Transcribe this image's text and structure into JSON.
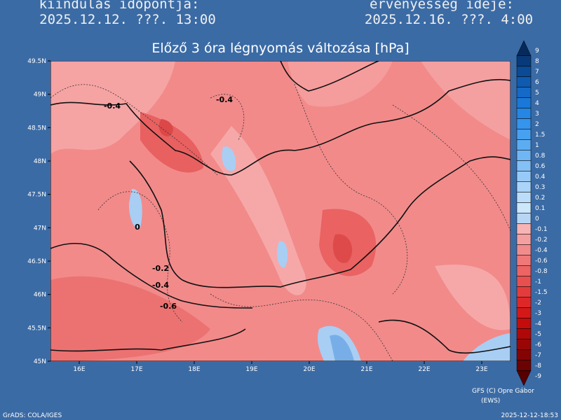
{
  "header": {
    "left_label": "kiindulás időpontja:",
    "left_value": "2025.12.12. ???. 13:00",
    "right_label": "érvényesség ideje:",
    "right_value": "2025.12.16. ???. 4:00"
  },
  "title": "Előző 3 óra légnyomás változása [hPa]",
  "map": {
    "latlim": [
      45,
      49.5
    ],
    "lonlim": [
      15.5,
      23.5
    ],
    "lat_ticks": [
      {
        "value": 49.5,
        "label": "49.5N"
      },
      {
        "value": 49,
        "label": "49N"
      },
      {
        "value": 48.5,
        "label": "48.5N"
      },
      {
        "value": 48,
        "label": "48N"
      },
      {
        "value": 47.5,
        "label": "47.5N"
      },
      {
        "value": 47,
        "label": "47N"
      },
      {
        "value": 46.5,
        "label": "46.5N"
      },
      {
        "value": 46,
        "label": "46N"
      },
      {
        "value": 45.5,
        "label": "45.5N"
      },
      {
        "value": 45,
        "label": "45N"
      }
    ],
    "lon_ticks": [
      {
        "value": 16,
        "label": "16E"
      },
      {
        "value": 17,
        "label": "17E"
      },
      {
        "value": 18,
        "label": "18E"
      },
      {
        "value": 19,
        "label": "19E"
      },
      {
        "value": 20,
        "label": "20E"
      },
      {
        "value": 21,
        "label": "21E"
      },
      {
        "value": 22,
        "label": "22E"
      },
      {
        "value": 23,
        "label": "23E"
      }
    ],
    "contour_labels": [
      "-0.4",
      "-0.4",
      "0",
      "-0.2",
      "-0.4",
      "-0.6"
    ]
  },
  "colorbar": {
    "levels": [
      9,
      8,
      7,
      6,
      5,
      4,
      3,
      2,
      1.5,
      1,
      0.8,
      0.6,
      0.4,
      0.3,
      0.2,
      0.1,
      0,
      -0.1,
      -0.2,
      -0.4,
      -0.6,
      -0.8,
      -1,
      -1.5,
      -2,
      -3,
      -4,
      -5,
      -6,
      -7,
      -8,
      -9
    ],
    "colors": [
      "#062a5c",
      "#083a7a",
      "#0b4a95",
      "#0f5bb0",
      "#146ac6",
      "#1a78d8",
      "#2586e4",
      "#3594ec",
      "#48a0f0",
      "#5cacf2",
      "#70b6f4",
      "#84c0f6",
      "#98caf7",
      "#aad4f8",
      "#bcddf9",
      "#cce6fa",
      "#b8d6f4",
      "#f8b4b4",
      "#f5a0a0",
      "#f28c8c",
      "#ef7878",
      "#ec6464",
      "#e85050",
      "#e43c3c",
      "#de2828",
      "#d41818",
      "#c40c0c",
      "#b00808",
      "#9a0606",
      "#840404",
      "#6c0202",
      "#560000"
    ]
  },
  "footer": {
    "credit": "GFS (C) Opre Gábor",
    "source": "(EWS)",
    "grads": "GrADS: COLA/IGES",
    "timestamp": "2025-12-12-18:53"
  }
}
